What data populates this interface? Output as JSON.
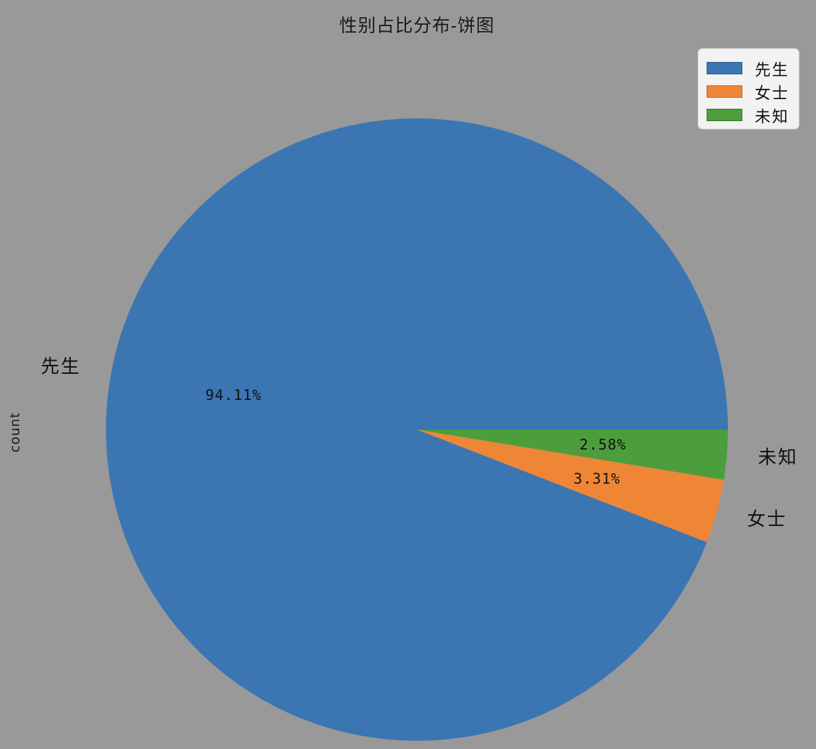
{
  "chart_data": {
    "type": "pie",
    "title": "性别占比分布-饼图",
    "ylabel": "count",
    "categories": [
      "先生",
      "女士",
      "未知"
    ],
    "values": [
      94.11,
      3.31,
      2.58
    ],
    "percent_labels": [
      "94.11%",
      "3.31%",
      "2.58%"
    ],
    "colors": [
      "#3b76b2",
      "#ef8636",
      "#4c9e3d"
    ],
    "start_angle": 0,
    "counterclockwise": true,
    "legend_position": "upper right",
    "background_color": "#999999",
    "legend_background_color": "#f2f2f2"
  }
}
